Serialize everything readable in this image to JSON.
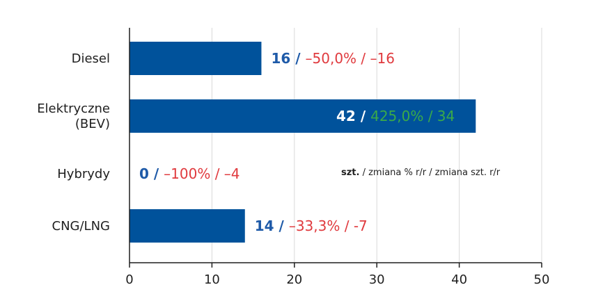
{
  "chart_data": {
    "type": "bar",
    "orientation": "horizontal",
    "categories": [
      [
        "Diesel"
      ],
      [
        "Elektryczne",
        "(BEV)"
      ],
      [
        "Hybrydy"
      ],
      [
        "CNG/LNG"
      ]
    ],
    "values": [
      16,
      42,
      0,
      14
    ],
    "data_labels": [
      {
        "count": "16",
        "sep": " / ",
        "change": "–50,0% / –16",
        "change_sign": "negative",
        "inside": false
      },
      {
        "count": "42",
        "sep": " / ",
        "change": "425,0% / 34",
        "change_sign": "positive",
        "inside": true
      },
      {
        "count": "0",
        "sep": " / ",
        "change": "–100% / –4",
        "change_sign": "negative",
        "inside": false
      },
      {
        "count": "14",
        "sep": " / ",
        "change": "–33,3% / -7",
        "change_sign": "negative",
        "inside": false
      }
    ],
    "xlim": [
      0,
      50
    ],
    "xticks": [
      0,
      10,
      20,
      30,
      40,
      50
    ],
    "grid": true,
    "legend_note": {
      "bold": "szt.",
      "rest": " / zmiana % r/r / zmiana szt. r/r"
    },
    "colors": {
      "bar": "#00529b",
      "count": "#1e5aa8",
      "count_inside": "#ffffff",
      "negative": "#e03a3e",
      "positive": "#3aaa49",
      "grid": "#d9d9d9",
      "axis": "#1f1f1f"
    }
  }
}
